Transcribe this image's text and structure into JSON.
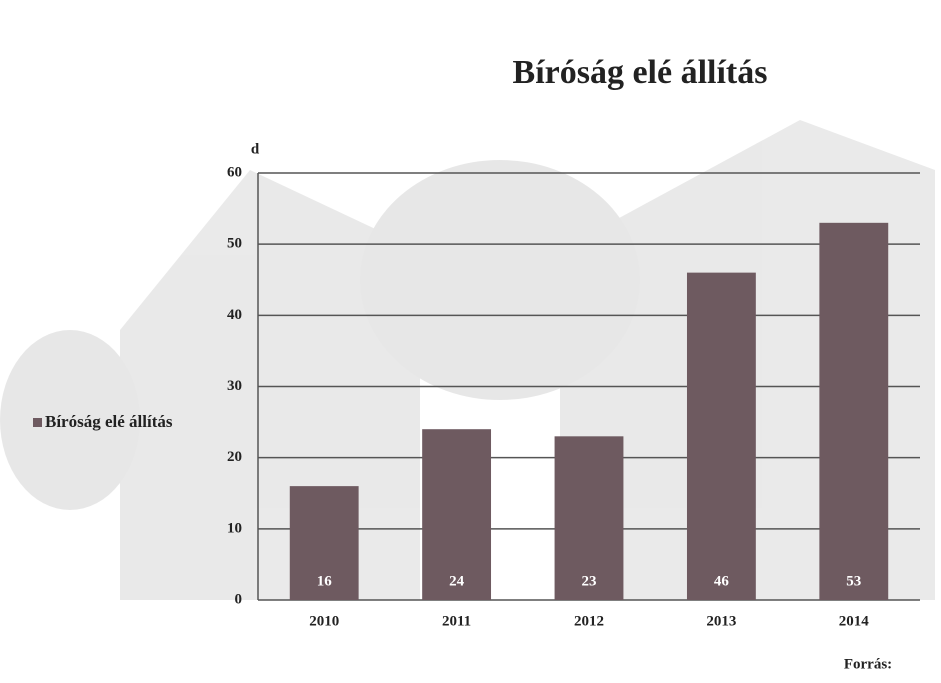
{
  "chart_data": {
    "type": "bar",
    "title": "Bíróság elé állítás",
    "y_label": "d",
    "categories": [
      "2010",
      "2011",
      "2012",
      "2013",
      "2014"
    ],
    "series": [
      {
        "name": "Bíróság elé állítás",
        "color": "#6e5a60",
        "values": [
          16,
          24,
          23,
          46,
          53
        ]
      }
    ],
    "ylim": [
      0,
      60
    ],
    "yticks": [
      0,
      10,
      20,
      30,
      40,
      50,
      60
    ],
    "grid": true,
    "legend": "left",
    "source": "Forrás:"
  }
}
